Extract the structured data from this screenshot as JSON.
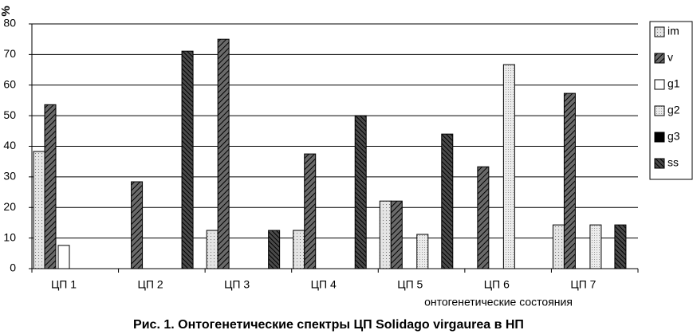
{
  "chart_data": {
    "type": "bar",
    "title": "Рис. 1. Онтогенетические спектры ЦП Solidago virgaurea  в НП",
    "y_label": "%",
    "x_label": "онтогенетические состояния",
    "categories": [
      "ЦП 1",
      "ЦП 2",
      "ЦП 3",
      "ЦП 4",
      "ЦП 5",
      "ЦП 6",
      "ЦП 7"
    ],
    "series": [
      {
        "name": "im",
        "color": "#e4e4e4",
        "values": [
          38.3,
          0,
          12.5,
          12.5,
          22.1,
          0,
          14.3
        ]
      },
      {
        "name": "v",
        "color": "#6a6a6a",
        "values": [
          53.6,
          28.4,
          75,
          37.5,
          22.1,
          33.3,
          57.3
        ]
      },
      {
        "name": "g1",
        "color": "#ffffff",
        "values": [
          7.6,
          0,
          0,
          0,
          0,
          0,
          0
        ]
      },
      {
        "name": "g2",
        "color": "#ececec",
        "values": [
          0,
          0,
          0,
          0,
          11.2,
          66.7,
          14.3
        ]
      },
      {
        "name": "g3",
        "color": "#000000",
        "values": [
          0,
          0,
          0,
          0,
          0,
          0,
          0
        ]
      },
      {
        "name": "ss",
        "color": "#4a4a4a",
        "values": [
          0,
          71.1,
          12.5,
          50,
          44,
          0,
          14.3
        ]
      }
    ],
    "ylim": [
      0,
      80
    ],
    "yticks": [
      0,
      10,
      20,
      30,
      40,
      50,
      60,
      70,
      80
    ],
    "grid": true
  }
}
